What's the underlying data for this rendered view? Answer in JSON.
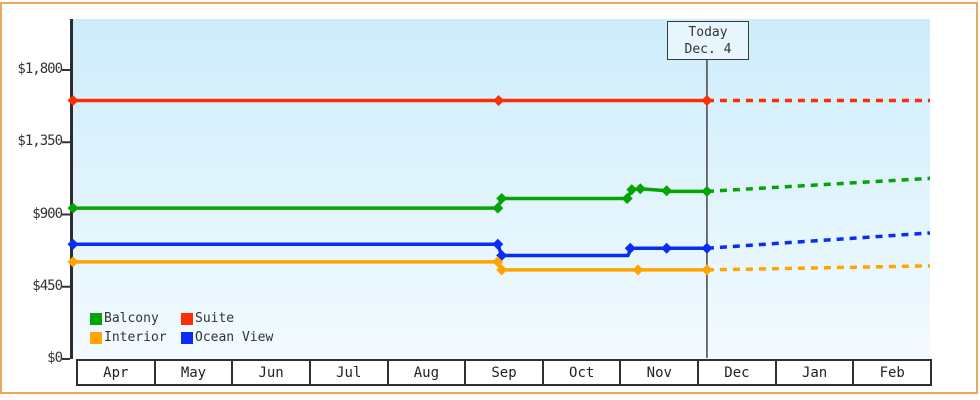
{
  "page": {
    "background": "#ffffff",
    "frame_border_color": "#eca75f",
    "plot_gradient_top": "#cdedfb",
    "plot_gradient_bottom": "#f3fbff",
    "axis_color": "#2d2d2d",
    "text_color": "#333333",
    "today_line_color": "#444444"
  },
  "chart_data": {
    "type": "line",
    "title": "",
    "xlabel": "",
    "ylabel": "",
    "x_categories": [
      "Apr",
      "May",
      "Jun",
      "Jul",
      "Aug",
      "Sep",
      "Oct",
      "Nov",
      "Dec",
      "Jan",
      "Feb"
    ],
    "y_ticks": [
      {
        "label": "$1,800",
        "value": 1800
      },
      {
        "label": "$1,350",
        "value": 1350
      },
      {
        "label": "$900",
        "value": 900
      },
      {
        "label": "$450",
        "value": 450
      },
      {
        "label": "$0",
        "value": 0
      }
    ],
    "ylim": [
      0,
      2115
    ],
    "grid": false,
    "legend_position": "bottom-left",
    "today": {
      "line1": "Today",
      "line2": "Dec. 4",
      "month_fraction": 8.12
    },
    "series": [
      {
        "name": "Suite",
        "color": "#f93005",
        "points": [
          [
            0,
            1610
          ],
          [
            5.43,
            1610
          ],
          [
            8.12,
            1610
          ]
        ],
        "markers": [
          [
            0,
            1610
          ],
          [
            5.43,
            1610
          ],
          [
            8.12,
            1610
          ]
        ],
        "forecast": [
          [
            8.12,
            1610
          ],
          [
            11,
            1610
          ]
        ]
      },
      {
        "name": "Balcony",
        "color": "#06a306",
        "points": [
          [
            0,
            940
          ],
          [
            5.42,
            940
          ],
          [
            5.47,
            1000
          ],
          [
            7.09,
            1000
          ],
          [
            7.15,
            1055
          ],
          [
            7.26,
            1060
          ],
          [
            7.6,
            1048
          ],
          [
            7.66,
            1044
          ],
          [
            8.12,
            1044
          ]
        ],
        "markers": [
          [
            0,
            940
          ],
          [
            5.42,
            940
          ],
          [
            5.47,
            1000
          ],
          [
            7.09,
            1000
          ],
          [
            7.15,
            1055
          ],
          [
            7.26,
            1060
          ],
          [
            7.6,
            1048
          ],
          [
            8.12,
            1044
          ]
        ],
        "forecast": [
          [
            8.12,
            1044
          ],
          [
            11,
            1125
          ]
        ]
      },
      {
        "name": "Ocean View",
        "color": "#0a2cf5",
        "points": [
          [
            0,
            715
          ],
          [
            5.42,
            715
          ],
          [
            5.47,
            645
          ],
          [
            7.1,
            645
          ],
          [
            7.14,
            690
          ],
          [
            8.12,
            690
          ]
        ],
        "markers": [
          [
            0,
            715
          ],
          [
            5.42,
            715
          ],
          [
            5.47,
            645
          ],
          [
            7.13,
            690
          ],
          [
            7.6,
            690
          ],
          [
            8.12,
            690
          ]
        ],
        "forecast": [
          [
            8.12,
            690
          ],
          [
            11,
            785
          ]
        ]
      },
      {
        "name": "Interior",
        "color": "#ffa400",
        "points": [
          [
            0,
            605
          ],
          [
            5.42,
            605
          ],
          [
            5.47,
            555
          ],
          [
            8.12,
            555
          ]
        ],
        "markers": [
          [
            0,
            605
          ],
          [
            5.42,
            605
          ],
          [
            5.47,
            555
          ],
          [
            7.23,
            555
          ],
          [
            8.12,
            555
          ]
        ],
        "forecast": [
          [
            8.12,
            555
          ],
          [
            11,
            580
          ]
        ]
      }
    ],
    "legend": {
      "items": [
        {
          "label": "Balcony",
          "color": "#06a306"
        },
        {
          "label": "Suite",
          "color": "#f93005"
        },
        {
          "label": "Interior",
          "color": "#ffa400"
        },
        {
          "label": "Ocean View",
          "color": "#0a2cf5"
        }
      ]
    }
  }
}
